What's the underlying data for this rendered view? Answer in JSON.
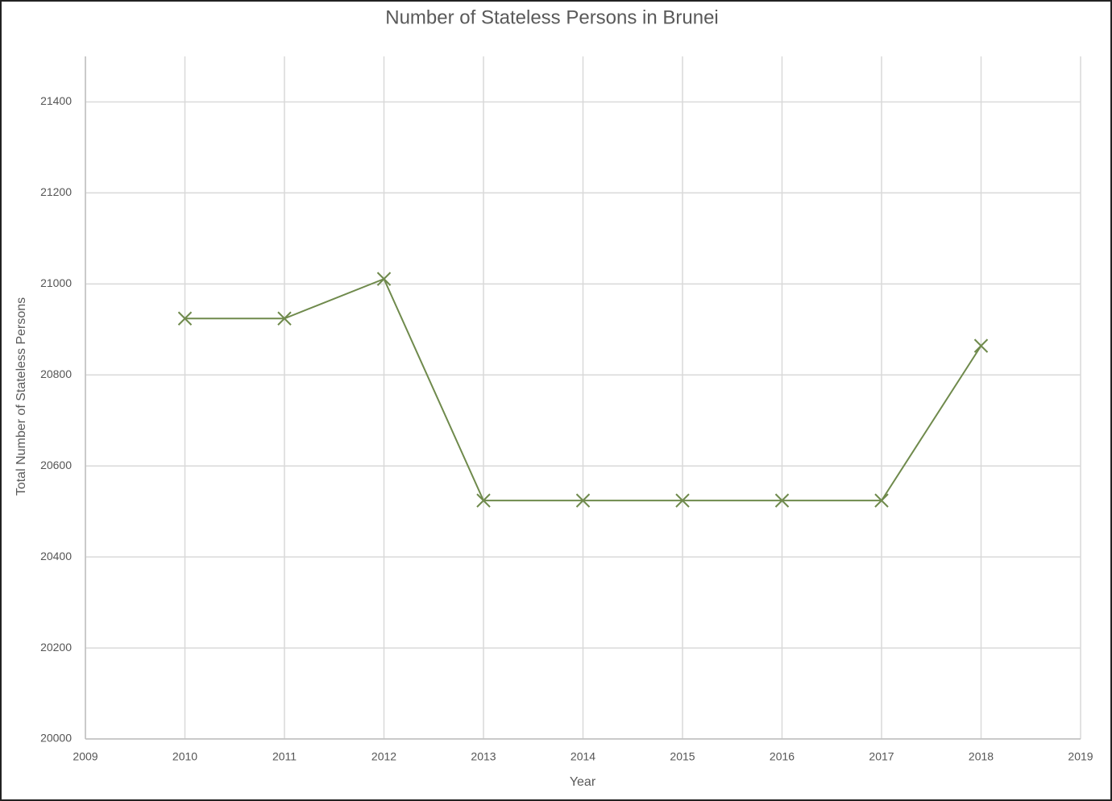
{
  "chart_data": {
    "type": "line",
    "title": "Number of Stateless Persons in Brunei",
    "x_label": "Year",
    "y_label": "Total Number of Stateless Persons",
    "x": [
      2010,
      2011,
      2012,
      2013,
      2014,
      2015,
      2016,
      2017,
      2018
    ],
    "series": [
      {
        "name": "Stateless Persons",
        "color": "#6f8a4c",
        "values": [
          20924,
          20924,
          21011,
          20524,
          20524,
          20524,
          20524,
          20524,
          20864
        ]
      }
    ],
    "xlim": [
      2009,
      2019
    ],
    "xticks": [
      2009,
      2010,
      2011,
      2012,
      2013,
      2014,
      2015,
      2016,
      2017,
      2018,
      2019
    ],
    "ylim": [
      20000,
      21500
    ],
    "yticks": [
      20000,
      20200,
      20400,
      20600,
      20800,
      21000,
      21200,
      21400
    ],
    "grid": true,
    "marker": "x"
  }
}
